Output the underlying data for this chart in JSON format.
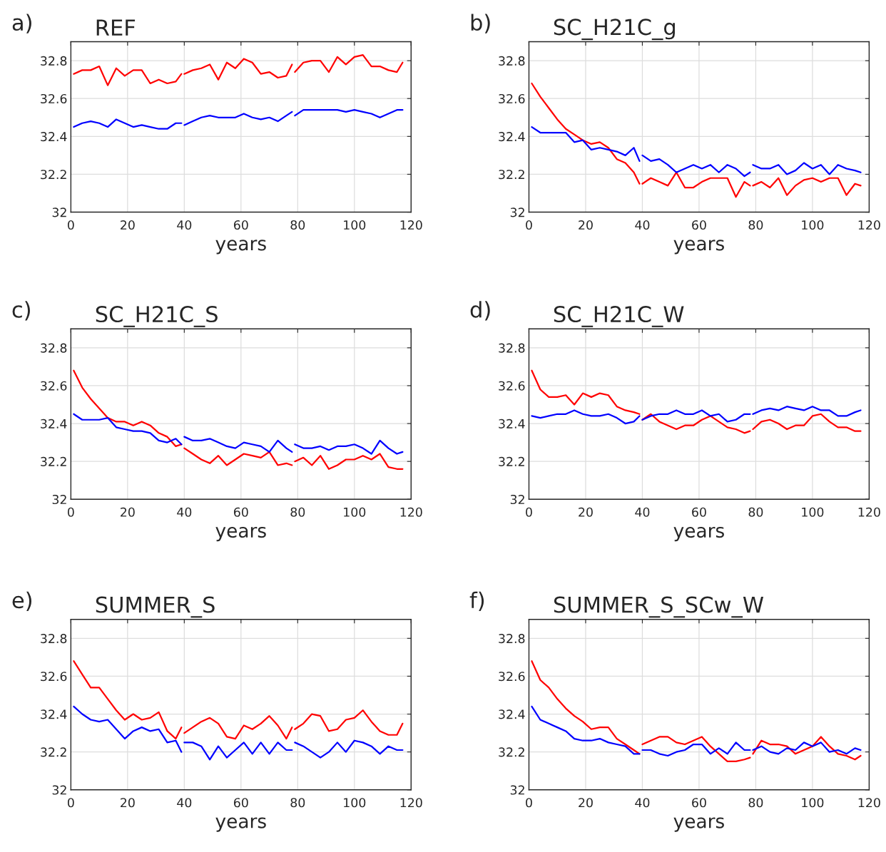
{
  "chart_data": [
    {
      "type": "line",
      "title": "REF",
      "xlabel": "years",
      "annotations": [
        "a)"
      ],
      "xlim": [
        0,
        120
      ],
      "ylim": [
        32,
        32.9
      ],
      "xticks": [
        0,
        20,
        40,
        60,
        80,
        100,
        120
      ],
      "yticks": [
        32,
        32.2,
        32.4,
        32.6,
        32.8
      ],
      "grid": true,
      "x": [
        1,
        4,
        7,
        10,
        13,
        16,
        19,
        22,
        25,
        28,
        31,
        34,
        37,
        39,
        39.5,
        40,
        43,
        46,
        49,
        52,
        55,
        58,
        61,
        64,
        67,
        70,
        73,
        76,
        78,
        78.5,
        79,
        82,
        85,
        88,
        91,
        94,
        97,
        100,
        103,
        106,
        109,
        112,
        115,
        117
      ],
      "series": [
        {
          "color": "#ff0000",
          "values": [
            32.73,
            32.75,
            32.75,
            32.77,
            32.67,
            32.76,
            32.72,
            32.75,
            32.75,
            32.68,
            32.7,
            32.68,
            32.69,
            32.73,
            null,
            32.73,
            32.75,
            32.76,
            32.78,
            32.7,
            32.79,
            32.76,
            32.81,
            32.79,
            32.73,
            32.74,
            32.71,
            32.72,
            32.78,
            null,
            32.74,
            32.79,
            32.8,
            32.8,
            32.74,
            32.82,
            32.78,
            32.82,
            32.83,
            32.77,
            32.77,
            32.75,
            32.74,
            32.79
          ]
        },
        {
          "color": "#0000ff",
          "values": [
            32.45,
            32.47,
            32.48,
            32.47,
            32.45,
            32.49,
            32.47,
            32.45,
            32.46,
            32.45,
            32.44,
            32.44,
            32.47,
            32.47,
            null,
            32.46,
            32.48,
            32.5,
            32.51,
            32.5,
            32.5,
            32.5,
            32.52,
            32.5,
            32.49,
            32.5,
            32.48,
            32.51,
            32.53,
            null,
            32.51,
            32.54,
            32.54,
            32.54,
            32.54,
            32.54,
            32.53,
            32.54,
            32.53,
            32.52,
            32.5,
            32.52,
            32.54,
            32.54
          ]
        }
      ]
    },
    {
      "type": "line",
      "title": "SC_H21C_g",
      "xlabel": "years",
      "annotations": [
        "b)"
      ],
      "xlim": [
        0,
        120
      ],
      "ylim": [
        32,
        32.9
      ],
      "xticks": [
        0,
        20,
        40,
        60,
        80,
        100,
        120
      ],
      "yticks": [
        32,
        32.2,
        32.4,
        32.6,
        32.8
      ],
      "grid": true,
      "x": [
        1,
        4,
        7,
        10,
        13,
        16,
        19,
        22,
        25,
        28,
        31,
        34,
        37,
        39,
        39.5,
        40,
        43,
        46,
        49,
        52,
        55,
        58,
        61,
        64,
        67,
        70,
        73,
        76,
        78,
        78.5,
        79,
        82,
        85,
        88,
        91,
        94,
        97,
        100,
        103,
        106,
        109,
        112,
        115,
        117
      ],
      "series": [
        {
          "color": "#ff0000",
          "values": [
            32.68,
            32.61,
            32.55,
            32.49,
            32.44,
            32.41,
            32.38,
            32.36,
            32.37,
            32.34,
            32.28,
            32.26,
            32.21,
            32.15,
            null,
            32.15,
            32.18,
            32.16,
            32.14,
            32.21,
            32.13,
            32.13,
            32.16,
            32.18,
            32.18,
            32.18,
            32.08,
            32.16,
            32.14,
            null,
            32.14,
            32.16,
            32.13,
            32.18,
            32.09,
            32.14,
            32.17,
            32.18,
            32.16,
            32.18,
            32.18,
            32.09,
            32.15,
            32.14
          ]
        },
        {
          "color": "#0000ff",
          "values": [
            32.45,
            32.42,
            32.42,
            32.42,
            32.42,
            32.37,
            32.38,
            32.33,
            32.34,
            32.33,
            32.32,
            32.3,
            32.34,
            32.27,
            null,
            32.3,
            32.27,
            32.28,
            32.25,
            32.21,
            32.23,
            32.25,
            32.23,
            32.25,
            32.21,
            32.25,
            32.23,
            32.19,
            32.21,
            null,
            32.25,
            32.23,
            32.23,
            32.25,
            32.2,
            32.22,
            32.26,
            32.23,
            32.25,
            32.2,
            32.25,
            32.23,
            32.22,
            32.21
          ]
        }
      ]
    },
    {
      "type": "line",
      "title": "SC_H21C_S",
      "xlabel": "years",
      "annotations": [
        "c)"
      ],
      "xlim": [
        0,
        120
      ],
      "ylim": [
        32,
        32.9
      ],
      "xticks": [
        0,
        20,
        40,
        60,
        80,
        100,
        120
      ],
      "yticks": [
        32,
        32.2,
        32.4,
        32.6,
        32.8
      ],
      "grid": true,
      "x": [
        1,
        4,
        7,
        10,
        13,
        16,
        19,
        22,
        25,
        28,
        31,
        34,
        37,
        39,
        39.5,
        40,
        43,
        46,
        49,
        52,
        55,
        58,
        61,
        64,
        67,
        70,
        73,
        76,
        78,
        78.5,
        79,
        82,
        85,
        88,
        91,
        94,
        97,
        100,
        103,
        106,
        109,
        112,
        115,
        117
      ],
      "series": [
        {
          "color": "#ff0000",
          "values": [
            32.68,
            32.59,
            32.53,
            32.48,
            32.43,
            32.41,
            32.41,
            32.39,
            32.41,
            32.39,
            32.35,
            32.33,
            32.28,
            32.29,
            null,
            32.27,
            32.24,
            32.21,
            32.19,
            32.23,
            32.18,
            32.21,
            32.24,
            32.23,
            32.22,
            32.25,
            32.18,
            32.19,
            32.18,
            null,
            32.2,
            32.22,
            32.18,
            32.23,
            32.16,
            32.18,
            32.21,
            32.21,
            32.23,
            32.21,
            32.24,
            32.17,
            32.16,
            32.16
          ]
        },
        {
          "color": "#0000ff",
          "values": [
            32.45,
            32.42,
            32.42,
            32.42,
            32.43,
            32.38,
            32.37,
            32.36,
            32.36,
            32.35,
            32.31,
            32.3,
            32.32,
            32.29,
            null,
            32.33,
            32.31,
            32.31,
            32.32,
            32.3,
            32.28,
            32.27,
            32.3,
            32.29,
            32.28,
            32.25,
            32.31,
            32.27,
            32.25,
            null,
            32.29,
            32.27,
            32.27,
            32.28,
            32.26,
            32.28,
            32.28,
            32.29,
            32.27,
            32.24,
            32.31,
            32.27,
            32.24,
            32.25
          ]
        }
      ]
    },
    {
      "type": "line",
      "title": "SC_H21C_W",
      "xlabel": "years",
      "annotations": [
        "d)"
      ],
      "xlim": [
        0,
        120
      ],
      "ylim": [
        32,
        32.9
      ],
      "xticks": [
        0,
        20,
        40,
        60,
        80,
        100,
        120
      ],
      "yticks": [
        32,
        32.2,
        32.4,
        32.6,
        32.8
      ],
      "grid": true,
      "x": [
        1,
        4,
        7,
        10,
        13,
        16,
        19,
        22,
        25,
        28,
        31,
        34,
        37,
        39,
        39.5,
        40,
        43,
        46,
        49,
        52,
        55,
        58,
        61,
        64,
        67,
        70,
        73,
        76,
        78,
        78.5,
        79,
        82,
        85,
        88,
        91,
        94,
        97,
        100,
        103,
        106,
        109,
        112,
        115,
        117
      ],
      "series": [
        {
          "color": "#ff0000",
          "values": [
            32.68,
            32.58,
            32.54,
            32.54,
            32.55,
            32.5,
            32.56,
            32.54,
            32.56,
            32.55,
            32.49,
            32.47,
            32.46,
            32.45,
            null,
            32.42,
            32.45,
            32.41,
            32.39,
            32.37,
            32.39,
            32.39,
            32.42,
            32.44,
            32.41,
            32.38,
            32.37,
            32.35,
            32.36,
            null,
            32.37,
            32.41,
            32.42,
            32.4,
            32.37,
            32.39,
            32.39,
            32.44,
            32.45,
            32.41,
            32.38,
            32.38,
            32.36,
            32.36
          ]
        },
        {
          "color": "#0000ff",
          "values": [
            32.44,
            32.43,
            32.44,
            32.45,
            32.45,
            32.47,
            32.45,
            32.44,
            32.44,
            32.45,
            32.43,
            32.4,
            32.41,
            32.44,
            null,
            32.42,
            32.44,
            32.45,
            32.45,
            32.47,
            32.45,
            32.45,
            32.47,
            32.44,
            32.45,
            32.41,
            32.42,
            32.45,
            32.45,
            null,
            32.45,
            32.47,
            32.48,
            32.47,
            32.49,
            32.48,
            32.47,
            32.49,
            32.47,
            32.47,
            32.44,
            32.44,
            32.46,
            32.47
          ]
        }
      ]
    },
    {
      "type": "line",
      "title": "SUMMER_S",
      "xlabel": "years",
      "annotations": [
        "e)"
      ],
      "xlim": [
        0,
        120
      ],
      "ylim": [
        32,
        32.9
      ],
      "xticks": [
        0,
        20,
        40,
        60,
        80,
        100,
        120
      ],
      "yticks": [
        32,
        32.2,
        32.4,
        32.6,
        32.8
      ],
      "grid": true,
      "x": [
        1,
        4,
        7,
        10,
        13,
        16,
        19,
        22,
        25,
        28,
        31,
        34,
        37,
        39,
        39.5,
        40,
        43,
        46,
        49,
        52,
        55,
        58,
        61,
        64,
        67,
        70,
        73,
        76,
        78,
        78.5,
        79,
        82,
        85,
        88,
        91,
        94,
        97,
        100,
        103,
        106,
        109,
        112,
        115,
        117
      ],
      "series": [
        {
          "color": "#ff0000",
          "values": [
            32.68,
            32.61,
            32.54,
            32.54,
            32.48,
            32.42,
            32.37,
            32.4,
            32.37,
            32.38,
            32.41,
            32.31,
            32.27,
            32.33,
            null,
            32.3,
            32.33,
            32.36,
            32.38,
            32.35,
            32.28,
            32.27,
            32.34,
            32.32,
            32.35,
            32.39,
            32.34,
            32.27,
            32.33,
            null,
            32.32,
            32.35,
            32.4,
            32.39,
            32.31,
            32.32,
            32.37,
            32.38,
            32.42,
            32.36,
            32.31,
            32.29,
            32.29,
            32.35
          ]
        },
        {
          "color": "#0000ff",
          "values": [
            32.44,
            32.4,
            32.37,
            32.36,
            32.37,
            32.32,
            32.27,
            32.31,
            32.33,
            32.31,
            32.32,
            32.25,
            32.26,
            32.2,
            null,
            32.25,
            32.25,
            32.23,
            32.16,
            32.23,
            32.17,
            32.21,
            32.25,
            32.19,
            32.25,
            32.19,
            32.25,
            32.21,
            32.21,
            null,
            32.25,
            32.23,
            32.2,
            32.17,
            32.2,
            32.25,
            32.2,
            32.26,
            32.25,
            32.23,
            32.19,
            32.23,
            32.21,
            32.21
          ]
        }
      ]
    },
    {
      "type": "line",
      "title": "SUMMER_S_SCw_W",
      "xlabel": "years",
      "annotations": [
        "f)"
      ],
      "xlim": [
        0,
        120
      ],
      "ylim": [
        32,
        32.9
      ],
      "xticks": [
        0,
        20,
        40,
        60,
        80,
        100,
        120
      ],
      "yticks": [
        32,
        32.2,
        32.4,
        32.6,
        32.8
      ],
      "grid": true,
      "x": [
        1,
        4,
        7,
        10,
        13,
        16,
        19,
        22,
        25,
        28,
        31,
        34,
        37,
        39,
        39.5,
        40,
        43,
        46,
        49,
        52,
        55,
        58,
        61,
        64,
        67,
        70,
        73,
        76,
        78,
        78.5,
        79,
        82,
        85,
        88,
        91,
        94,
        97,
        100,
        103,
        106,
        109,
        112,
        115,
        117
      ],
      "series": [
        {
          "color": "#ff0000",
          "values": [
            32.68,
            32.58,
            32.54,
            32.48,
            32.43,
            32.39,
            32.36,
            32.32,
            32.33,
            32.33,
            32.27,
            32.24,
            32.21,
            32.19,
            null,
            32.24,
            32.26,
            32.28,
            32.28,
            32.25,
            32.24,
            32.26,
            32.28,
            32.23,
            32.19,
            32.15,
            32.15,
            32.16,
            32.17,
            null,
            32.19,
            32.26,
            32.24,
            32.24,
            32.23,
            32.19,
            32.21,
            32.23,
            32.28,
            32.23,
            32.19,
            32.18,
            32.16,
            32.18
          ]
        },
        {
          "color": "#0000ff",
          "values": [
            32.44,
            32.37,
            32.35,
            32.33,
            32.31,
            32.27,
            32.26,
            32.26,
            32.27,
            32.25,
            32.24,
            32.23,
            32.19,
            32.19,
            null,
            32.21,
            32.21,
            32.19,
            32.18,
            32.2,
            32.21,
            32.24,
            32.24,
            32.19,
            32.22,
            32.19,
            32.25,
            32.21,
            32.21,
            null,
            32.21,
            32.23,
            32.2,
            32.19,
            32.22,
            32.21,
            32.25,
            32.23,
            32.25,
            32.2,
            32.21,
            32.19,
            32.22,
            32.21
          ]
        }
      ]
    }
  ]
}
